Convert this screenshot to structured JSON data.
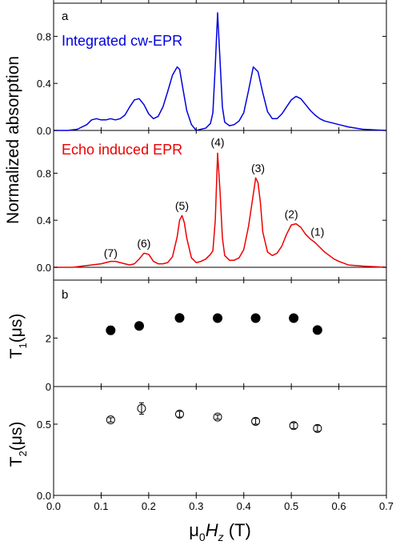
{
  "colors": {
    "cw": "#0000dd",
    "echo": "#ee0000",
    "axis": "#000000"
  },
  "xaxis": {
    "label_prefix": "μ",
    "label_sub0": "0",
    "label_H": "H",
    "label_subz": "z",
    "label_unit": " (T)",
    "ticks": [
      "0.0",
      "0.1",
      "0.2",
      "0.3",
      "0.4",
      "0.5",
      "0.6",
      "0.7"
    ]
  },
  "panel_a": {
    "letter": "a",
    "ylabel": "Normalized absorption",
    "top_ticks": [
      "0.0",
      "0.4",
      "0.8"
    ],
    "bottom_ticks": [
      "0.0",
      "0.4",
      "0.8"
    ]
  },
  "panel_b": {
    "letter": "b",
    "t1_label_main": "T",
    "t1_label_sub": "1",
    "t1_label_unit": "(μs)",
    "t2_label_main": "T",
    "t2_label_sub": "2",
    "t2_label_unit": "(μs)",
    "t1_ticks": [
      "0",
      "2"
    ],
    "t2_ticks": [
      "0.0",
      "0.5"
    ]
  },
  "chart_data": [
    {
      "type": "line",
      "panel": "a-top",
      "x_range": [
        0.0,
        0.7
      ],
      "ylim": [
        0.0,
        1.0
      ],
      "series": [
        {
          "name": "Integrated cw-EPR",
          "color": "#0000dd",
          "x": [
            0.0,
            0.03,
            0.05,
            0.07,
            0.08,
            0.09,
            0.1,
            0.11,
            0.12,
            0.13,
            0.14,
            0.15,
            0.16,
            0.17,
            0.18,
            0.19,
            0.2,
            0.21,
            0.22,
            0.23,
            0.24,
            0.25,
            0.26,
            0.265,
            0.27,
            0.28,
            0.29,
            0.3,
            0.31,
            0.32,
            0.33,
            0.335,
            0.34,
            0.345,
            0.35,
            0.355,
            0.36,
            0.37,
            0.38,
            0.39,
            0.4,
            0.41,
            0.42,
            0.43,
            0.44,
            0.45,
            0.46,
            0.47,
            0.48,
            0.49,
            0.5,
            0.51,
            0.52,
            0.53,
            0.54,
            0.55,
            0.56,
            0.57,
            0.58,
            0.6,
            0.62,
            0.65,
            0.7
          ],
          "y": [
            0.0,
            0.0,
            0.01,
            0.05,
            0.09,
            0.1,
            0.09,
            0.09,
            0.1,
            0.09,
            0.1,
            0.13,
            0.2,
            0.26,
            0.27,
            0.22,
            0.14,
            0.1,
            0.12,
            0.2,
            0.33,
            0.47,
            0.54,
            0.52,
            0.4,
            0.17,
            0.05,
            0.0,
            0.01,
            0.02,
            0.06,
            0.15,
            0.55,
            1.0,
            0.6,
            0.2,
            0.07,
            0.04,
            0.05,
            0.08,
            0.15,
            0.34,
            0.54,
            0.5,
            0.32,
            0.16,
            0.1,
            0.1,
            0.14,
            0.2,
            0.26,
            0.29,
            0.27,
            0.22,
            0.17,
            0.13,
            0.1,
            0.08,
            0.07,
            0.05,
            0.03,
            0.01,
            0.0
          ]
        }
      ]
    },
    {
      "type": "line",
      "panel": "a-bottom",
      "x_range": [
        0.0,
        0.7
      ],
      "ylim": [
        0.0,
        1.0
      ],
      "series": [
        {
          "name": "Echo induced EPR",
          "color": "#ee0000",
          "x": [
            0.0,
            0.02,
            0.04,
            0.06,
            0.08,
            0.1,
            0.11,
            0.12,
            0.13,
            0.14,
            0.15,
            0.16,
            0.17,
            0.18,
            0.19,
            0.2,
            0.21,
            0.22,
            0.23,
            0.24,
            0.25,
            0.26,
            0.265,
            0.27,
            0.275,
            0.28,
            0.29,
            0.3,
            0.31,
            0.32,
            0.33,
            0.335,
            0.34,
            0.345,
            0.35,
            0.355,
            0.36,
            0.37,
            0.38,
            0.39,
            0.4,
            0.41,
            0.42,
            0.425,
            0.43,
            0.435,
            0.44,
            0.45,
            0.46,
            0.47,
            0.48,
            0.49,
            0.5,
            0.51,
            0.52,
            0.53,
            0.54,
            0.55,
            0.56,
            0.57,
            0.58,
            0.59,
            0.6,
            0.62,
            0.65,
            0.7
          ],
          "y": [
            0.0,
            0.0,
            0.0,
            0.01,
            0.02,
            0.03,
            0.04,
            0.05,
            0.05,
            0.04,
            0.03,
            0.02,
            0.03,
            0.07,
            0.12,
            0.11,
            0.05,
            0.03,
            0.03,
            0.04,
            0.09,
            0.26,
            0.4,
            0.44,
            0.38,
            0.25,
            0.08,
            0.04,
            0.05,
            0.07,
            0.11,
            0.14,
            0.4,
            0.97,
            0.65,
            0.25,
            0.1,
            0.06,
            0.06,
            0.08,
            0.15,
            0.35,
            0.62,
            0.76,
            0.72,
            0.55,
            0.3,
            0.13,
            0.1,
            0.12,
            0.18,
            0.28,
            0.36,
            0.37,
            0.34,
            0.28,
            0.24,
            0.21,
            0.17,
            0.13,
            0.1,
            0.07,
            0.05,
            0.02,
            0.01,
            0.0
          ]
        }
      ],
      "peak_labels": [
        {
          "label": "(7)",
          "x": 0.12,
          "y": 0.09
        },
        {
          "label": "(6)",
          "x": 0.19,
          "y": 0.17
        },
        {
          "label": "(5)",
          "x": 0.27,
          "y": 0.49
        },
        {
          "label": "(4)",
          "x": 0.345,
          "y": 1.03
        },
        {
          "label": "(3)",
          "x": 0.43,
          "y": 0.81
        },
        {
          "label": "(2)",
          "x": 0.5,
          "y": 0.42
        },
        {
          "label": "(1)",
          "x": 0.555,
          "y": 0.27
        }
      ]
    },
    {
      "type": "scatter",
      "panel": "b-top",
      "ylabel": "T1 (μs)",
      "ylim": [
        0.0,
        3.0
      ],
      "series": [
        {
          "name": "T1",
          "marker": "filled-circle",
          "x": [
            0.12,
            0.18,
            0.265,
            0.345,
            0.425,
            0.505,
            0.555
          ],
          "y": [
            2.32,
            2.5,
            2.83,
            2.82,
            2.82,
            2.82,
            2.33
          ],
          "yerr": [
            0.17,
            0.05,
            0.03,
            0.03,
            0.03,
            0.03,
            0.03
          ]
        }
      ]
    },
    {
      "type": "scatter",
      "panel": "b-bottom",
      "ylabel": "T2 (μs)",
      "ylim": [
        0.0,
        0.75
      ],
      "series": [
        {
          "name": "T2",
          "marker": "open-circle",
          "x": [
            0.12,
            0.185,
            0.265,
            0.345,
            0.425,
            0.505,
            0.555
          ],
          "y": [
            0.53,
            0.61,
            0.57,
            0.55,
            0.52,
            0.49,
            0.47
          ],
          "yerr": [
            0.015,
            0.04,
            0.02,
            0.015,
            0.02,
            0.02,
            0.02
          ]
        }
      ]
    }
  ]
}
